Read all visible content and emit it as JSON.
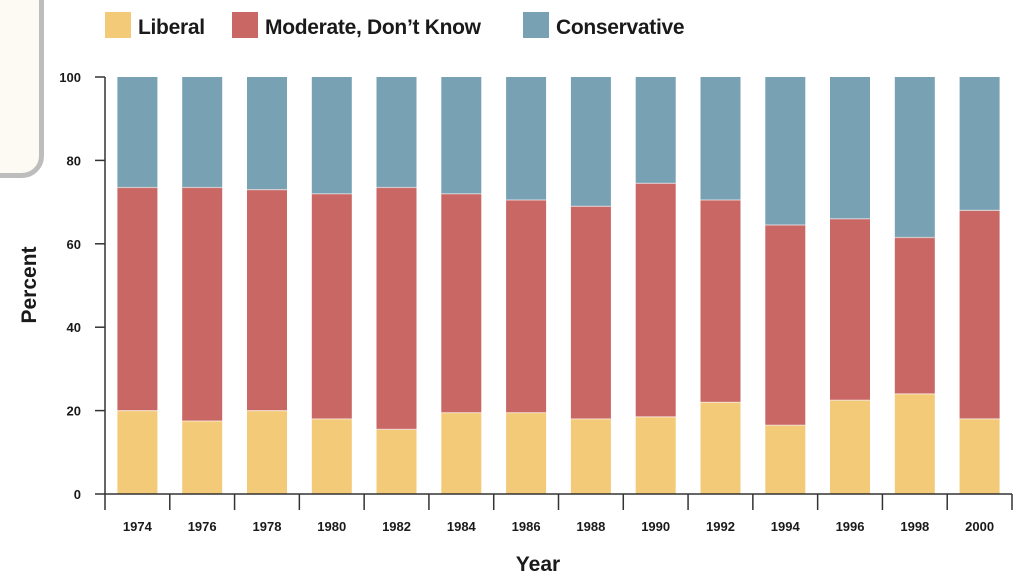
{
  "chart_data": {
    "type": "bar",
    "stacked": true,
    "categories": [
      "1974",
      "1976",
      "1978",
      "1980",
      "1982",
      "1984",
      "1986",
      "1988",
      "1990",
      "1992",
      "1994",
      "1996",
      "1998",
      "2000"
    ],
    "series": [
      {
        "name": "Liberal",
        "color": "#f3ca78",
        "values": [
          20,
          17.5,
          20,
          18,
          15.5,
          19.5,
          19.5,
          18,
          18.5,
          22,
          16.5,
          22.5,
          24,
          18
        ]
      },
      {
        "name": "Moderate, Don’t Know",
        "color": "#c86763",
        "values": [
          53.5,
          56,
          53,
          54,
          58,
          52.5,
          51,
          51,
          56,
          48.5,
          48,
          43.5,
          37.5,
          50
        ]
      },
      {
        "name": "Conservative",
        "color": "#78a1b4",
        "values": [
          26.5,
          26.5,
          27,
          28,
          26.5,
          28,
          29.5,
          31,
          25.5,
          29.5,
          35.5,
          34,
          38.5,
          32
        ]
      }
    ],
    "xlabel": "Year",
    "ylabel": "Percent",
    "ylim": [
      0,
      100
    ],
    "yticks": [
      "0",
      "20",
      "40",
      "60",
      "80",
      "100"
    ],
    "legend_position": "top",
    "grid": false
  }
}
